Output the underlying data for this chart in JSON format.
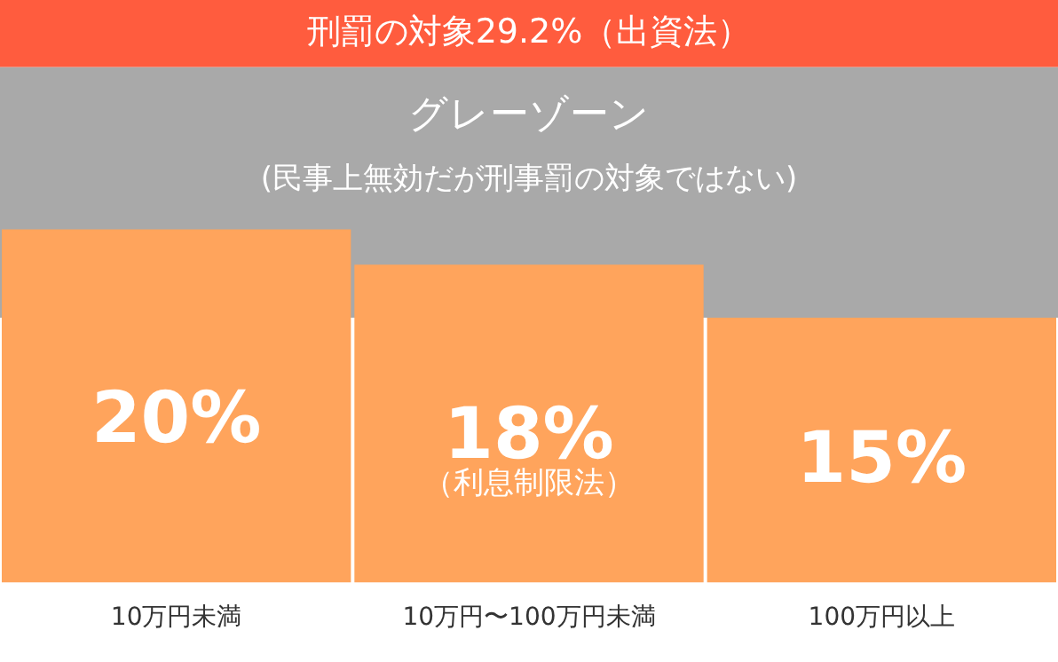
{
  "chart_data": {
    "type": "bar",
    "categories": [
      "10万円未満",
      "10万円〜100万円未満",
      "100万円以上"
    ],
    "values": [
      20,
      18,
      15
    ],
    "color": "#ffa45c",
    "value_labels": [
      "20%",
      "18%",
      "15%"
    ],
    "ylim": [
      0,
      33
    ],
    "tick_labels": "x",
    "grid": false,
    "legend": false,
    "bands": [
      {
        "axis": "y",
        "from": 15,
        "to": 29.2,
        "label": "グレーゾーン\n(民事上無効だが刑事罰の対象ではない)",
        "color": "#a9a9a9"
      },
      {
        "axis": "y",
        "from": 29.2,
        "to": 33,
        "label": "刑罰の対象29.2%（出資法）",
        "color": "#ff5c3e"
      }
    ],
    "annotations": [
      "（利息制限法）"
    ]
  }
}
